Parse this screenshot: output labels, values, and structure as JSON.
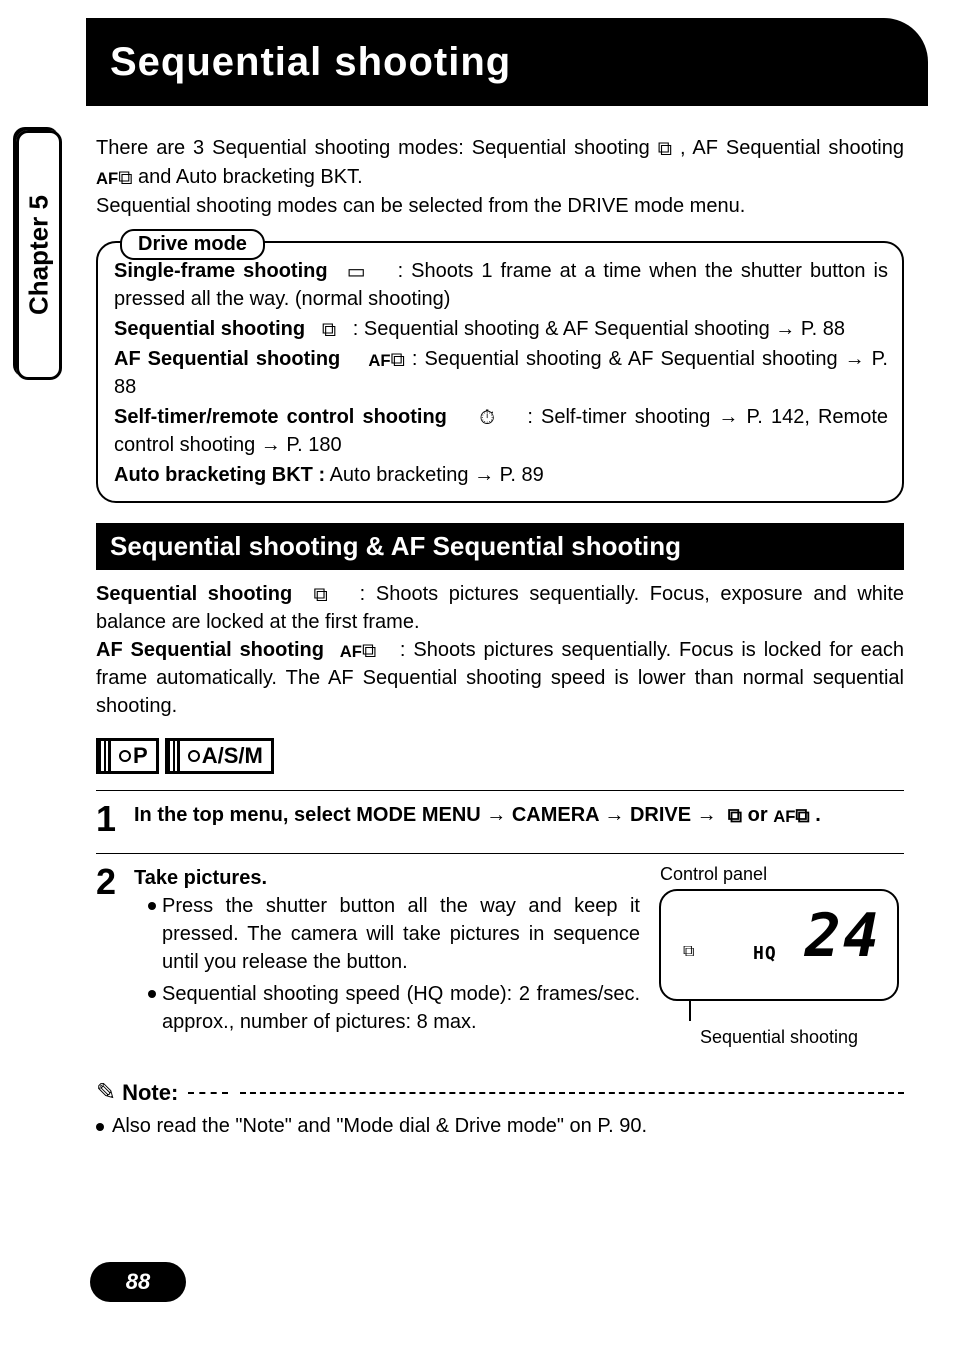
{
  "page": {
    "title": "Sequential shooting",
    "chapter_tab": "Chapter 5",
    "page_number": "88"
  },
  "intro": {
    "line1_a": "There are 3 Sequential shooting modes: Sequential shooting ",
    "line1_b": " , AF Sequential shooting ",
    "line1_c": " and Auto bracketing BKT.",
    "line2": "Sequential shooting modes can be selected from the DRIVE mode menu."
  },
  "drive_box": {
    "label": "Drive mode",
    "single_label": "Single-frame shooting",
    "single_text_a": " : Shoots 1 frame at a time when the shutter button is pressed all the way. (normal shooting)",
    "seq_label": "Sequential shooting",
    "seq_text_a": " : Sequential shooting & AF Sequential shooting ",
    "seq_text_b": " P. 88",
    "afseq_label": "AF Sequential shooting",
    "afseq_text_a": " : Sequential shooting & AF Sequential shooting ",
    "afseq_text_b": " P. 88",
    "self_label": "Self-timer/remote control shooting",
    "self_text_a": " : Self-timer shooting ",
    "self_text_b": " P. 142, Remote control shooting ",
    "self_text_c": " P. 180",
    "bkt_label": "Auto bracketing  BKT :",
    "bkt_text_a": " Auto bracketing ",
    "bkt_text_b": " P. 89"
  },
  "section": {
    "title": "Sequential shooting & AF Sequential shooting",
    "seq_label": "Sequential shooting",
    "seq_text": " : Shoots pictures sequentially. Focus, exposure and white balance are locked at the first frame.",
    "afseq_label": "AF Sequential shooting",
    "afseq_text": " : Shoots pictures sequentially. Focus is locked for each frame automatically. The AF Sequential shooting speed is lower than normal sequential shooting."
  },
  "mode_tags": {
    "tag1": "P",
    "tag2": "A/S/M"
  },
  "steps": {
    "s1": {
      "num": "1",
      "a": "In the top menu, select MODE MENU ",
      "b": " CAMERA ",
      "c": " DRIVE",
      "d": " or ",
      "e": " ."
    },
    "s2": {
      "num": "2",
      "head": "Take pictures.",
      "b1": "Press the shutter button all the way and keep it pressed. The camera will take pictures in sequence until you release the button.",
      "b2": "Sequential shooting speed (HQ mode): 2 frames/sec. approx., number of pictures: 8 max."
    }
  },
  "panel": {
    "label": "Control panel",
    "hq": "HQ",
    "num": "24",
    "caption": "Sequential shooting"
  },
  "note": {
    "label": "Note:",
    "text": "Also read the \"Note\" and \"Mode dial & Drive mode\" on P. 90."
  },
  "icons": {
    "seq_stack": "⧉",
    "af_prefix": "AF",
    "arrow": "→",
    "single_frame": "▭",
    "timer": "⏱",
    "note_glyph": "✎"
  }
}
